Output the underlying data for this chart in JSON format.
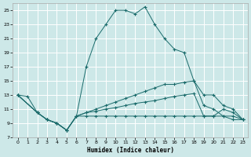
{
  "xlabel": "Humidex (Indice chaleur)",
  "bg_color": "#cde8e8",
  "grid_color": "#ffffff",
  "line_color": "#1a6b6b",
  "xlim": [
    -0.5,
    23.5
  ],
  "ylim": [
    7,
    26
  ],
  "yticks": [
    7,
    9,
    11,
    13,
    15,
    17,
    19,
    21,
    23,
    25
  ],
  "xticks": [
    0,
    1,
    2,
    3,
    4,
    5,
    6,
    7,
    8,
    9,
    10,
    11,
    12,
    13,
    14,
    15,
    16,
    17,
    18,
    19,
    20,
    21,
    22,
    23
  ],
  "line1_x": [
    0,
    1,
    2,
    3,
    4,
    5,
    6,
    7,
    8,
    9,
    10,
    11,
    12,
    13,
    14,
    15,
    16,
    17,
    18,
    19,
    20,
    21,
    22,
    23
  ],
  "line1_y": [
    13,
    12.8,
    10.5,
    9.5,
    9,
    8,
    10,
    17,
    21,
    23,
    25,
    25,
    24.5,
    25.5,
    23,
    21,
    19.5,
    19,
    15,
    11.5,
    11,
    10,
    9.5,
    9.5
  ],
  "line2_x": [
    0,
    2,
    3,
    4,
    5,
    6,
    7,
    8,
    9,
    10,
    11,
    12,
    13,
    14,
    15,
    16,
    17,
    18,
    19,
    20,
    21,
    22,
    23
  ],
  "line2_y": [
    13,
    10.5,
    9.5,
    9,
    8,
    10,
    10.5,
    11,
    11.5,
    12,
    12.5,
    13,
    13.5,
    14,
    14.5,
    14.5,
    14.8,
    15,
    13,
    13,
    11.5,
    11,
    9.5
  ],
  "line3_x": [
    0,
    2,
    3,
    4,
    5,
    6,
    7,
    8,
    9,
    10,
    11,
    12,
    13,
    14,
    15,
    16,
    17,
    18,
    19,
    20,
    21,
    22,
    23
  ],
  "line3_y": [
    13,
    10.5,
    9.5,
    9,
    8,
    10,
    10.5,
    10.7,
    11,
    11.2,
    11.5,
    11.8,
    12,
    12.2,
    12.5,
    12.8,
    13,
    13.2,
    10,
    10,
    11,
    10.5,
    9.5
  ],
  "line4_x": [
    0,
    2,
    3,
    4,
    5,
    6,
    7,
    8,
    9,
    10,
    11,
    12,
    13,
    14,
    15,
    16,
    17,
    18,
    19,
    20,
    21,
    22,
    23
  ],
  "line4_y": [
    13,
    10.5,
    9.5,
    9,
    8,
    10,
    10,
    10,
    10,
    10,
    10,
    10,
    10,
    10,
    10,
    10,
    10,
    10,
    10,
    10,
    10,
    10,
    9.5
  ]
}
